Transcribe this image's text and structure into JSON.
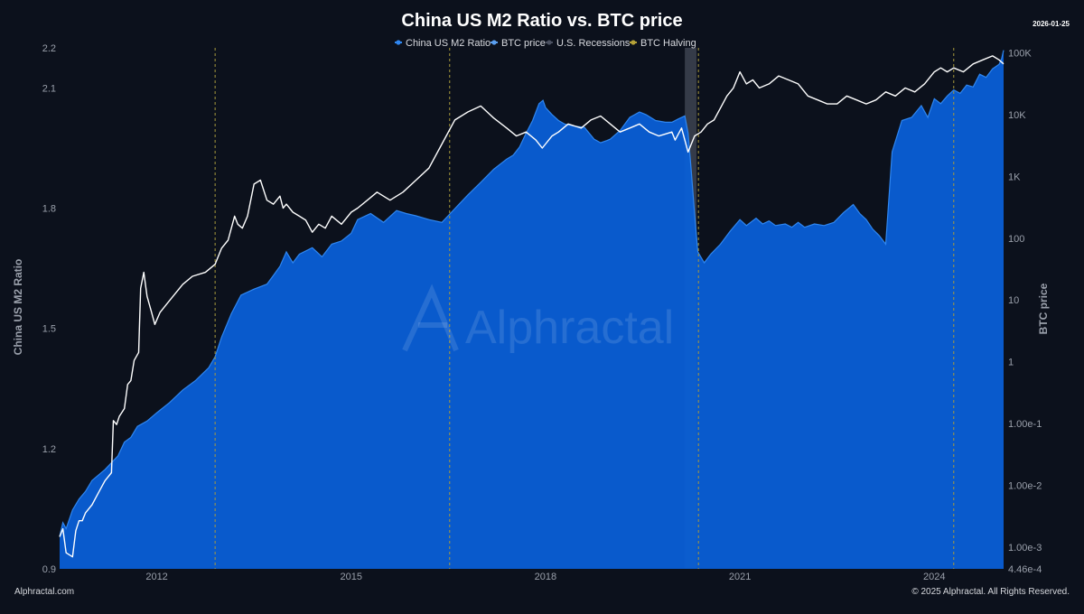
{
  "header": {
    "title": "China US M2 Ratio vs. BTC price",
    "date": "2026-01-25"
  },
  "footer": {
    "left": "Alphractal.com",
    "right": "© 2025 Alphractal. All Rights Reserved."
  },
  "watermark": "Alphractal",
  "colors": {
    "background": "#0c111c",
    "btc_fill": "#0a5fd6",
    "btc_edge": "#2f86f0",
    "m2_line": "#ffffff",
    "halving": "#a89a3c",
    "recession": "#3d4350",
    "text": "#d7d9de",
    "muted": "#9aa0ab"
  },
  "chart_data": {
    "type": "area",
    "title": "China US M2 Ratio vs. BTC price",
    "legend": {
      "placement": "top-center",
      "items": [
        {
          "label": "China US M2 Ratio",
          "color": "#2f86f0"
        },
        {
          "label": "BTC price",
          "color": "#5a9ff0"
        },
        {
          "label": "U.S. Recessions",
          "color": "#4a5060"
        },
        {
          "label": "BTC Halving",
          "color": "#b5a238"
        }
      ]
    },
    "x_axis": {
      "range": [
        2010.5,
        2025.07
      ],
      "ticks": [
        2012,
        2015,
        2018,
        2021,
        2024
      ],
      "tick_labels": [
        "2012",
        "2015",
        "2018",
        "2021",
        "2024"
      ]
    },
    "y_left": {
      "label": "China US M2 Ratio",
      "range": [
        0.9,
        2.2
      ],
      "ticks": [
        0.9,
        1.2,
        1.5,
        1.8,
        2.1,
        2.2
      ],
      "tick_labels": [
        "0.9",
        "1.2",
        "1.5",
        "1.8",
        "2.1",
        "2.2"
      ]
    },
    "y_right": {
      "label": "BTC price",
      "scale": "log",
      "range": [
        0.000446,
        120000
      ],
      "ticks": [
        0.000446,
        0.001,
        0.01,
        0.1,
        1,
        10,
        100,
        1000,
        10000,
        100000
      ],
      "tick_labels": [
        "4.46e-4",
        "1.00e-3",
        "1.00e-2",
        "1.00e-1",
        "1",
        "10",
        "100",
        "1K",
        "10K",
        "100K"
      ]
    },
    "grid": false,
    "halvings": [
      2012.9,
      2016.52,
      2020.36,
      2024.3
    ],
    "recessions": [
      [
        2020.15,
        2020.33
      ]
    ],
    "series": [
      {
        "name": "China US M2 Ratio",
        "kind": "line",
        "axis": "left",
        "x": [
          2010.5,
          2010.55,
          2010.6,
          2010.7,
          2010.75,
          2010.8,
          2010.85,
          2010.9,
          2011.0,
          2011.1,
          2011.2,
          2011.3,
          2011.33,
          2011.38,
          2011.42,
          2011.5,
          2011.55,
          2011.6,
          2011.65,
          2011.72,
          2011.75,
          2011.8,
          2011.85,
          2011.92,
          2011.97,
          2012.05,
          2012.15,
          2012.25,
          2012.4,
          2012.55,
          2012.75,
          2012.9,
          2013.0,
          2013.1,
          2013.2,
          2013.25,
          2013.32,
          2013.4,
          2013.5,
          2013.6,
          2013.7,
          2013.8,
          2013.9,
          2013.95,
          2014.0,
          2014.1,
          2014.2,
          2014.3,
          2014.4,
          2014.5,
          2014.6,
          2014.7,
          2014.85,
          2015.0,
          2015.1,
          2015.25,
          2015.4,
          2015.6,
          2015.8,
          2016.0,
          2016.2,
          2016.4,
          2016.6,
          2016.8,
          2017.0,
          2017.2,
          2017.4,
          2017.55,
          2017.7,
          2017.85,
          2017.95,
          2018.0,
          2018.1,
          2018.2,
          2018.35,
          2018.55,
          2018.7,
          2018.85,
          2019.0,
          2019.15,
          2019.3,
          2019.45,
          2019.6,
          2019.75,
          2019.85,
          2019.95,
          2020.0,
          2020.1,
          2020.2,
          2020.25,
          2020.3,
          2020.4,
          2020.5,
          2020.6,
          2020.7,
          2020.8,
          2020.9,
          2021.0,
          2021.1,
          2021.2,
          2021.3,
          2021.45,
          2021.6,
          2021.75,
          2021.9,
          2022.05,
          2022.2,
          2022.35,
          2022.5,
          2022.65,
          2022.8,
          2022.95,
          2023.1,
          2023.25,
          2023.4,
          2023.55,
          2023.7,
          2023.85,
          2024.0,
          2024.1,
          2024.2,
          2024.3,
          2024.45,
          2024.6,
          2024.75,
          2024.9,
          2025.0,
          2025.07
        ],
        "y": [
          0.98,
          1.0,
          0.94,
          0.93,
          0.995,
          1.02,
          1.02,
          1.04,
          1.06,
          1.09,
          1.12,
          1.14,
          1.27,
          1.26,
          1.28,
          1.3,
          1.36,
          1.37,
          1.42,
          1.44,
          1.6,
          1.64,
          1.58,
          1.54,
          1.51,
          1.54,
          1.56,
          1.58,
          1.61,
          1.63,
          1.64,
          1.66,
          1.7,
          1.72,
          1.78,
          1.76,
          1.75,
          1.78,
          1.86,
          1.87,
          1.82,
          1.81,
          1.83,
          1.8,
          1.81,
          1.79,
          1.78,
          1.77,
          1.74,
          1.76,
          1.75,
          1.78,
          1.76,
          1.79,
          1.8,
          1.82,
          1.84,
          1.82,
          1.84,
          1.87,
          1.9,
          1.96,
          2.02,
          2.04,
          2.055,
          2.025,
          2.0,
          1.98,
          1.99,
          1.97,
          1.95,
          1.96,
          1.98,
          1.99,
          2.01,
          2.0,
          2.02,
          2.03,
          2.01,
          1.99,
          2.0,
          2.01,
          1.99,
          1.98,
          1.985,
          1.99,
          1.97,
          2.0,
          1.94,
          1.96,
          1.98,
          1.99,
          2.01,
          2.02,
          2.05,
          2.08,
          2.1,
          2.14,
          2.11,
          2.12,
          2.1,
          2.11,
          2.13,
          2.12,
          2.11,
          2.08,
          2.07,
          2.06,
          2.06,
          2.08,
          2.07,
          2.06,
          2.07,
          2.09,
          2.08,
          2.1,
          2.09,
          2.11,
          2.14,
          2.15,
          2.14,
          2.15,
          2.14,
          2.16,
          2.17,
          2.18,
          2.17,
          2.16
        ],
        "color": "#ffffff"
      },
      {
        "name": "BTC price",
        "kind": "area",
        "axis": "right",
        "x": [
          2010.5,
          2010.55,
          2010.6,
          2010.7,
          2010.8,
          2010.9,
          2011.0,
          2011.2,
          2011.4,
          2011.5,
          2011.6,
          2011.7,
          2011.85,
          2012.0,
          2012.2,
          2012.4,
          2012.6,
          2012.8,
          2012.9,
          2013.0,
          2013.15,
          2013.3,
          2013.5,
          2013.7,
          2013.8,
          2013.9,
          2014.0,
          2014.1,
          2014.2,
          2014.4,
          2014.55,
          2014.7,
          2014.85,
          2015.0,
          2015.1,
          2015.3,
          2015.5,
          2015.7,
          2015.85,
          2016.0,
          2016.2,
          2016.4,
          2016.6,
          2016.8,
          2017.0,
          2017.2,
          2017.4,
          2017.5,
          2017.6,
          2017.7,
          2017.8,
          2017.9,
          2017.96,
          2018.0,
          2018.1,
          2018.2,
          2018.3,
          2018.45,
          2018.6,
          2018.75,
          2018.85,
          2018.95,
          2019.0,
          2019.15,
          2019.3,
          2019.45,
          2019.55,
          2019.7,
          2019.85,
          2019.95,
          2020.05,
          2020.15,
          2020.2,
          2020.25,
          2020.3,
          2020.35,
          2020.45,
          2020.55,
          2020.7,
          2020.85,
          2021.0,
          2021.1,
          2021.25,
          2021.35,
          2021.45,
          2021.55,
          2021.7,
          2021.8,
          2021.9,
          2022.0,
          2022.15,
          2022.3,
          2022.45,
          2022.6,
          2022.75,
          2022.85,
          2022.95,
          2023.05,
          2023.15,
          2023.25,
          2023.35,
          2023.5,
          2023.65,
          2023.8,
          2023.9,
          2024.0,
          2024.1,
          2024.2,
          2024.3,
          2024.4,
          2024.5,
          2024.6,
          2024.7,
          2024.8,
          2024.9,
          2025.0,
          2025.04,
          2025.07
        ],
        "y": [
          0.0015,
          0.0025,
          0.002,
          0.004,
          0.006,
          0.008,
          0.012,
          0.018,
          0.03,
          0.05,
          0.06,
          0.09,
          0.11,
          0.15,
          0.22,
          0.35,
          0.5,
          0.8,
          1.2,
          2.5,
          6,
          12,
          15,
          18,
          25,
          35,
          60,
          40,
          55,
          70,
          50,
          80,
          90,
          120,
          200,
          250,
          180,
          280,
          250,
          230,
          200,
          180,
          300,
          500,
          800,
          1300,
          1900,
          2200,
          3000,
          5000,
          8000,
          15000,
          17000,
          13000,
          10000,
          8000,
          7000,
          6500,
          6200,
          4000,
          3500,
          3800,
          4000,
          5500,
          9000,
          11000,
          10000,
          8000,
          7500,
          7500,
          8500,
          9500,
          5000,
          1200,
          250,
          60,
          40,
          55,
          80,
          130,
          200,
          160,
          210,
          170,
          190,
          160,
          170,
          150,
          180,
          150,
          170,
          160,
          180,
          260,
          350,
          250,
          200,
          140,
          110,
          80,
          2500,
          8000,
          9000,
          14000,
          9000,
          18000,
          15000,
          20000,
          25000,
          22000,
          30000,
          28000,
          45000,
          40000,
          55000,
          65000,
          80000,
          110000
        ],
        "color": "#0a5fd6"
      }
    ]
  }
}
